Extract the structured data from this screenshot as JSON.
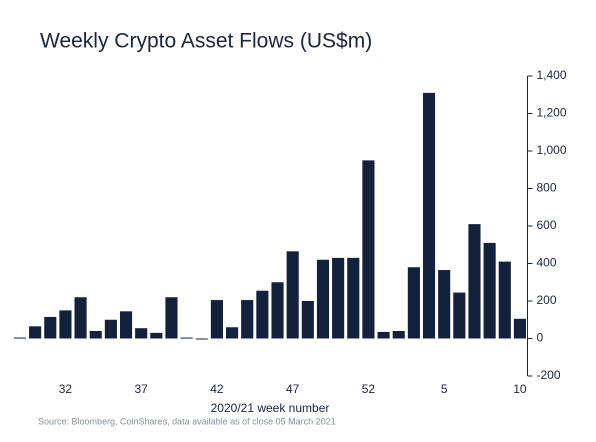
{
  "chart_data": {
    "type": "bar",
    "title": "Weekly Crypto Asset Flows (US$m)",
    "xlabel": "2020/21 week number",
    "source": "Source: Bloomberg, CoinShares, data available as of close 05 March 2021",
    "categories": [
      null,
      null,
      null,
      32,
      null,
      null,
      null,
      null,
      37,
      null,
      null,
      null,
      null,
      42,
      null,
      null,
      null,
      null,
      47,
      null,
      null,
      null,
      null,
      52,
      null,
      null,
      null,
      null,
      5,
      null,
      null,
      null,
      null,
      10
    ],
    "values": [
      5,
      65,
      115,
      150,
      220,
      40,
      100,
      145,
      55,
      30,
      220,
      5,
      -5,
      205,
      60,
      205,
      255,
      300,
      465,
      200,
      420,
      430,
      430,
      950,
      35,
      40,
      380,
      1310,
      365,
      245,
      610,
      510,
      410,
      105
    ],
    "color": "#14213d",
    "ylim": [
      -200,
      1400
    ],
    "yticks": [
      -200,
      0,
      200,
      400,
      600,
      800,
      {
        "value": 1000,
        "label": "1,000"
      },
      {
        "value": 1200,
        "label": "1,200"
      },
      {
        "value": 1400,
        "label": "1,400"
      }
    ],
    "y_axis_side": "right"
  }
}
